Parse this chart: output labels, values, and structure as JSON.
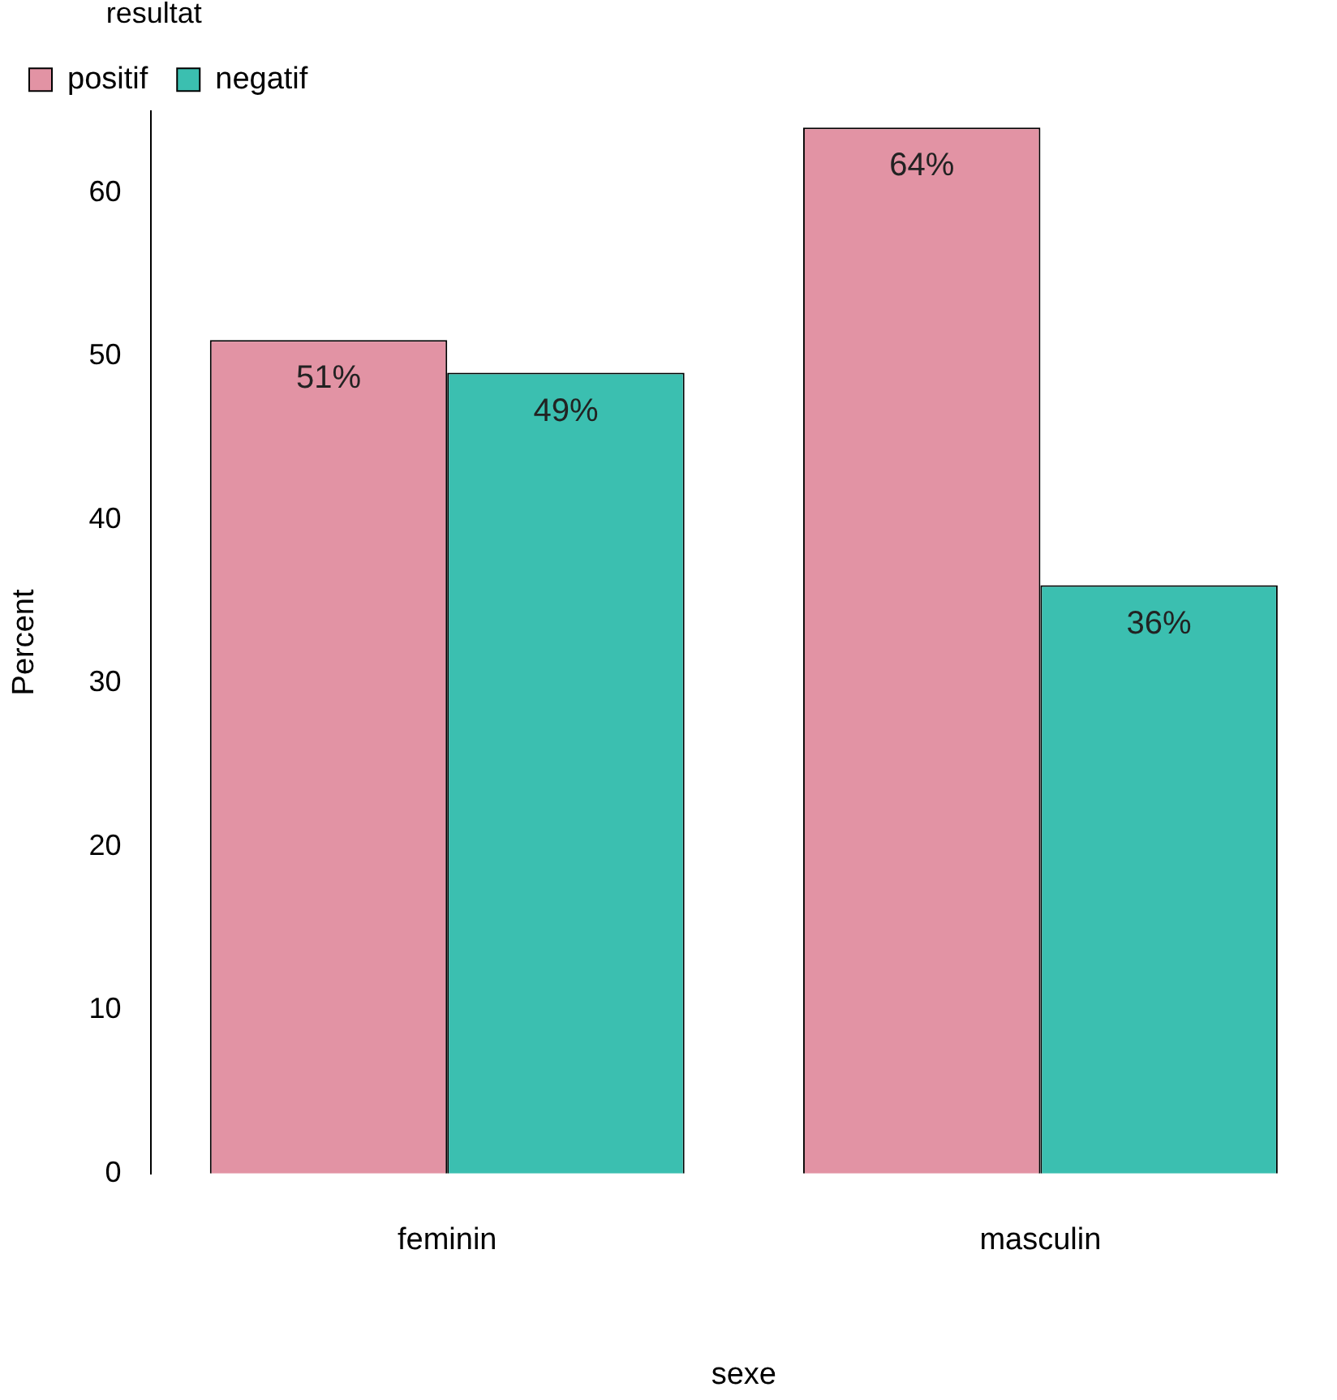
{
  "chart_data": {
    "type": "bar",
    "xlabel": "sexe",
    "ylabel": "Percent",
    "legend_title": "resultat",
    "categories": [
      "feminin",
      "masculin"
    ],
    "series": [
      {
        "name": "positif",
        "color": "#e293a4",
        "values": [
          51,
          64
        ],
        "value_labels": [
          "51%",
          "64%"
        ]
      },
      {
        "name": "negatif",
        "color": "#3bbfb0",
        "values": [
          49,
          36
        ],
        "value_labels": [
          "49%",
          "36%"
        ]
      }
    ],
    "ylim": [
      0,
      65
    ],
    "yticks": [
      0,
      10,
      20,
      30,
      40,
      50,
      60
    ],
    "grid": false,
    "legend": "top left"
  }
}
